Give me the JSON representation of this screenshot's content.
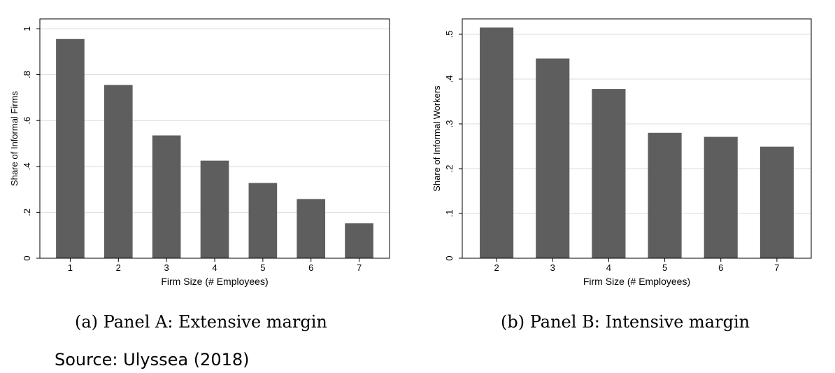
{
  "chart_data": [
    {
      "type": "bar",
      "categories": [
        "1",
        "2",
        "3",
        "4",
        "5",
        "6",
        "7"
      ],
      "values": [
        0.955,
        0.755,
        0.535,
        0.425,
        0.328,
        0.258,
        0.152
      ],
      "xlabel": "Firm Size (# Employees)",
      "ylabel": "Share of Informal Firms",
      "ylim": [
        0,
        1
      ],
      "yticks": [
        0,
        0.2,
        0.4,
        0.6,
        0.8,
        1
      ],
      "ytick_labels": [
        "0",
        ".2",
        ".4",
        ".6",
        ".8",
        "1"
      ],
      "grid": true,
      "bar_color": "#5e5e5e"
    },
    {
      "type": "bar",
      "categories": [
        "2",
        "3",
        "4",
        "5",
        "6",
        "7"
      ],
      "values": [
        0.515,
        0.446,
        0.378,
        0.28,
        0.271,
        0.249
      ],
      "xlabel": "Firm Size (# Employees)",
      "ylabel": "Share of Informal Workers",
      "ylim": [
        0,
        0.5
      ],
      "yticks": [
        0,
        0.1,
        0.2,
        0.3,
        0.4,
        0.5
      ],
      "ytick_labels": [
        "0",
        ".1",
        ".2",
        ".3",
        ".4",
        ".5"
      ],
      "grid": true,
      "bar_color": "#5e5e5e"
    }
  ],
  "captions": {
    "a": "(a)  Panel A: Extensive margin",
    "b": "(b)  Panel B: Intensive margin"
  },
  "source": "Source:  Ulyssea (2018)"
}
